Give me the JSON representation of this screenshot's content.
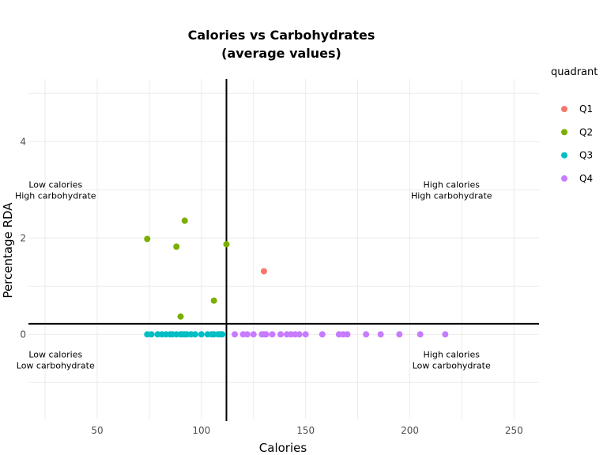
{
  "chart_data": {
    "type": "scatter",
    "title_lines": [
      "Calories vs Carbohydrates",
      "(average values)"
    ],
    "xlabel": "Calories",
    "ylabel": "Percentage RDA",
    "xlim": [
      17,
      262
    ],
    "ylim": [
      -1.75,
      5.3
    ],
    "x_ticks": [
      50,
      100,
      150,
      200,
      250
    ],
    "y_ticks": [
      0,
      2,
      4
    ],
    "grid": true,
    "reference_lines": {
      "x": 112,
      "y": 0.22
    },
    "legend": {
      "title": "quadrant",
      "placement": "right"
    },
    "series": [
      {
        "name": "Q1",
        "color": "#F8766D",
        "points": [
          [
            130,
            1.31
          ]
        ]
      },
      {
        "name": "Q2",
        "color": "#7CAE00",
        "points": [
          [
            74,
            1.98
          ],
          [
            88,
            1.82
          ],
          [
            92,
            2.36
          ],
          [
            112,
            1.87
          ],
          [
            106,
            0.7
          ],
          [
            90,
            0.37
          ]
        ]
      },
      {
        "name": "Q3",
        "color": "#00BFC4",
        "points": [
          [
            74,
            0
          ],
          [
            76,
            0
          ],
          [
            79,
            0
          ],
          [
            81,
            0
          ],
          [
            83,
            0
          ],
          [
            85,
            0
          ],
          [
            86,
            0
          ],
          [
            88,
            0
          ],
          [
            90,
            0
          ],
          [
            91,
            0
          ],
          [
            92,
            0
          ],
          [
            93,
            0
          ],
          [
            95,
            0
          ],
          [
            97,
            0
          ],
          [
            100,
            0
          ],
          [
            103,
            0
          ],
          [
            105,
            0
          ],
          [
            106,
            0
          ],
          [
            108,
            0
          ],
          [
            109,
            0
          ],
          [
            110,
            0
          ]
        ]
      },
      {
        "name": "Q4",
        "color": "#C77CFF",
        "points": [
          [
            116,
            0
          ],
          [
            120,
            0
          ],
          [
            122,
            0
          ],
          [
            125,
            0
          ],
          [
            129,
            0
          ],
          [
            130,
            0
          ],
          [
            131,
            0
          ],
          [
            134,
            0
          ],
          [
            138,
            0
          ],
          [
            141,
            0
          ],
          [
            143,
            0
          ],
          [
            145,
            0
          ],
          [
            147,
            0
          ],
          [
            150,
            0
          ],
          [
            158,
            0
          ],
          [
            166,
            0
          ],
          [
            168,
            0
          ],
          [
            170,
            0
          ],
          [
            179,
            0
          ],
          [
            186,
            0
          ],
          [
            195,
            0
          ],
          [
            205,
            0
          ],
          [
            217,
            0
          ]
        ]
      }
    ],
    "annotations": [
      {
        "lines": [
          "Low calories",
          "High carbohydrate"
        ],
        "x": 30,
        "y": 3.0
      },
      {
        "lines": [
          "High calories",
          "High carbohydrate"
        ],
        "x": 220,
        "y": 3.0
      },
      {
        "lines": [
          "Low calories",
          "Low carbohydrate"
        ],
        "x": 30,
        "y": -0.53
      },
      {
        "lines": [
          "High calories",
          "Low carbohydrate"
        ],
        "x": 220,
        "y": -0.53
      }
    ]
  }
}
